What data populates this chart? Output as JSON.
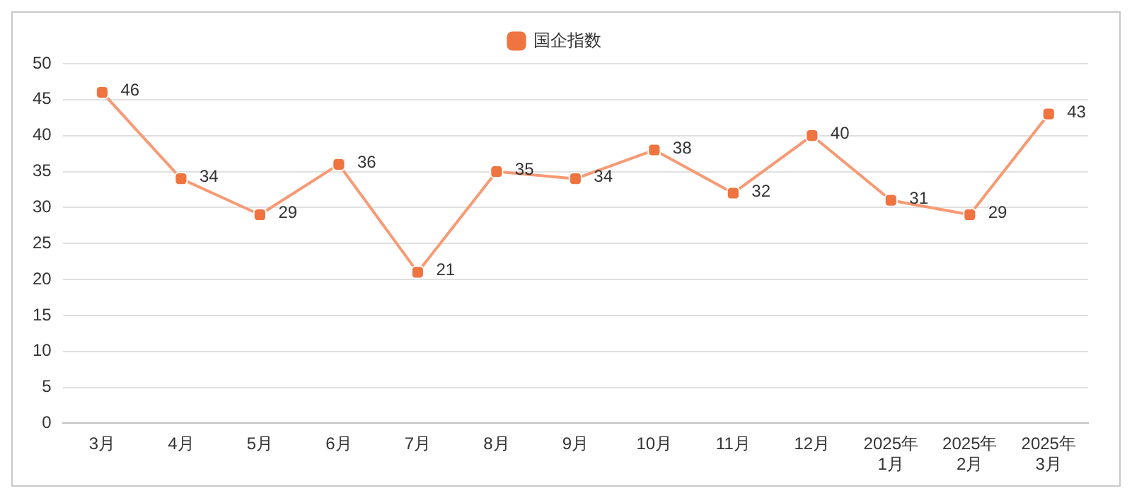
{
  "chart_data": {
    "type": "line",
    "categories": [
      "3月",
      "4月",
      "5月",
      "6月",
      "7月",
      "8月",
      "9月",
      "10月",
      "11月",
      "12月",
      "2025年1月",
      "2025年2月",
      "2025年3月"
    ],
    "series": [
      {
        "name": "国企指数",
        "color": "#f79a74",
        "values": [
          46,
          34,
          29,
          36,
          21,
          35,
          34,
          38,
          32,
          40,
          31,
          29,
          43
        ]
      }
    ],
    "ylim": [
      0,
      50
    ],
    "yticks": [
      0,
      5,
      10,
      15,
      20,
      25,
      30,
      35,
      40,
      45,
      50
    ],
    "grid": "y",
    "legend": "top",
    "marker": "square",
    "data_labels": true
  }
}
